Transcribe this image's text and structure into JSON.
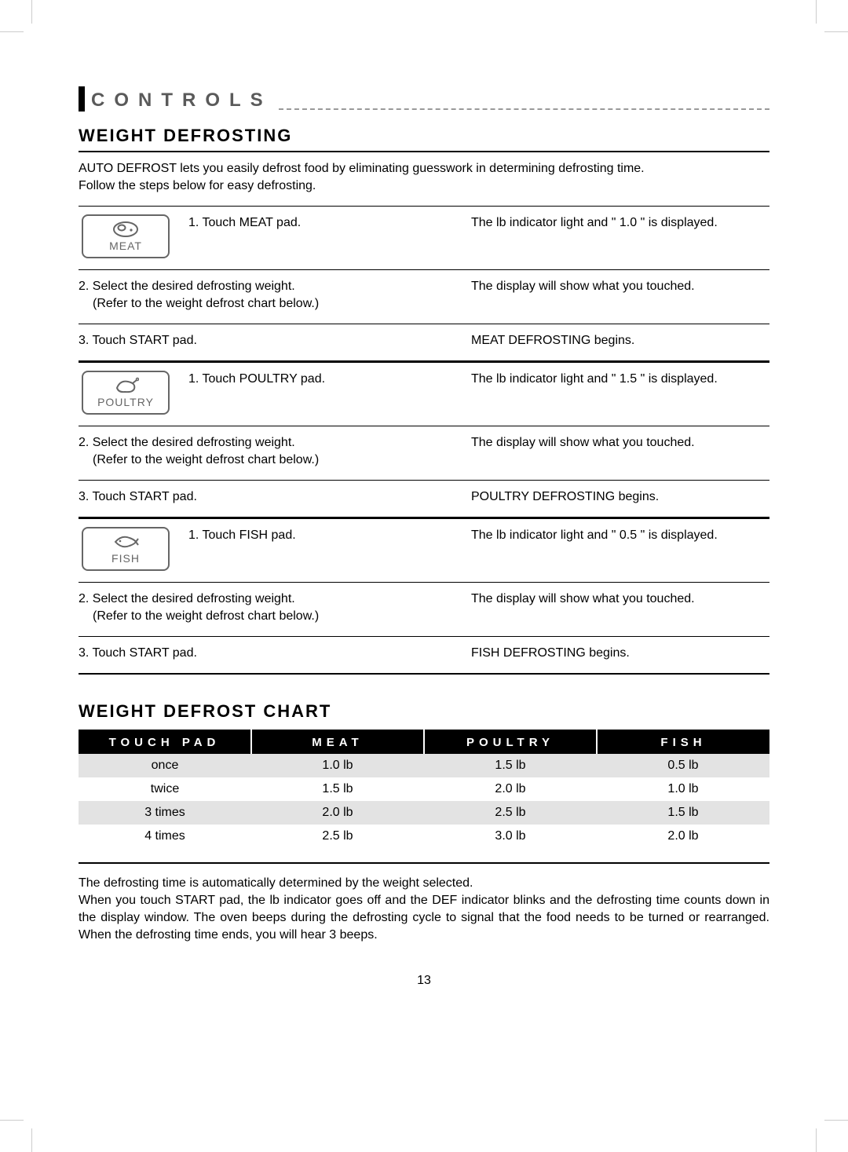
{
  "section_label": "CONTROLS",
  "heading_defrosting": "Weight Defrosting",
  "intro_line1": "AUTO DEFROST lets you easily defrost food by eliminating guesswork in determining defrosting time.",
  "intro_line2": "Follow the steps below for easy defrosting.",
  "pads": {
    "meat": "MEAT",
    "poultry": "POULTRY",
    "fish": "FISH"
  },
  "procedures": [
    {
      "pad_key": "meat",
      "steps": [
        {
          "instruction": "1. Touch MEAT pad.",
          "result": "The lb indicator light and \" 1.0 \" is displayed."
        },
        {
          "instruction": "2. Select the desired defrosting weight.",
          "instruction_sub": "(Refer to the weight defrost chart below.)",
          "result": "The display will show what you touched."
        },
        {
          "instruction": "3. Touch START pad.",
          "result": "MEAT DEFROSTING begins."
        }
      ]
    },
    {
      "pad_key": "poultry",
      "steps": [
        {
          "instruction": "1. Touch POULTRY pad.",
          "result": "The lb indicator light and \" 1.5 \" is displayed."
        },
        {
          "instruction": "2. Select the desired defrosting weight.",
          "instruction_sub": "(Refer to the weight defrost chart below.)",
          "result": "The display will show what you touched."
        },
        {
          "instruction": "3. Touch START pad.",
          "result": "POULTRY DEFROSTING begins."
        }
      ]
    },
    {
      "pad_key": "fish",
      "steps": [
        {
          "instruction": "1. Touch FISH pad.",
          "result": "The lb indicator light and \" 0.5 \" is displayed."
        },
        {
          "instruction": "2. Select the desired defrosting weight.",
          "instruction_sub": "(Refer to the weight defrost chart below.)",
          "result": "The display will show what you touched."
        },
        {
          "instruction": "3. Touch START pad.",
          "result": "FISH DEFROSTING begins."
        }
      ]
    }
  ],
  "heading_chart": "Weight Defrost Chart",
  "chart": {
    "columns": [
      "TOUCH PAD",
      "MEAT",
      "POULTRY",
      "FISH"
    ],
    "rows": [
      [
        "once",
        "1.0 lb",
        "1.5 lb",
        "0.5 lb"
      ],
      [
        "twice",
        "1.5 lb",
        "2.0 lb",
        "1.0 lb"
      ],
      [
        "3 times",
        "2.0 lb",
        "2.5 lb",
        "1.5 lb"
      ],
      [
        "4 times",
        "2.5 lb",
        "3.0 lb",
        "2.0 lb"
      ]
    ],
    "col_widths": [
      "25%",
      "25%",
      "25%",
      "25%"
    ],
    "header_bg": "#000000",
    "header_fg": "#ffffff",
    "row_odd_bg": "#e3e3e3",
    "row_even_bg": "#ffffff",
    "header_fontsize": 15,
    "cell_fontsize": 16,
    "letter_spacing_header": 6
  },
  "notes_line1": "The defrosting time is automatically determined by the weight selected.",
  "notes_para": "When you touch START pad, the lb indicator goes off and the DEF indicator blinks and the defrosting time counts down in the display window. The oven beeps during the defrosting cycle to signal that the food needs to be turned or rearranged. When the defrosting time ends, you will hear 3 beeps.",
  "page_number": "13",
  "colors": {
    "text": "#000000",
    "section_label": "#5a5a5a",
    "dash": "#9a9a9a",
    "pad_border": "#666666"
  }
}
